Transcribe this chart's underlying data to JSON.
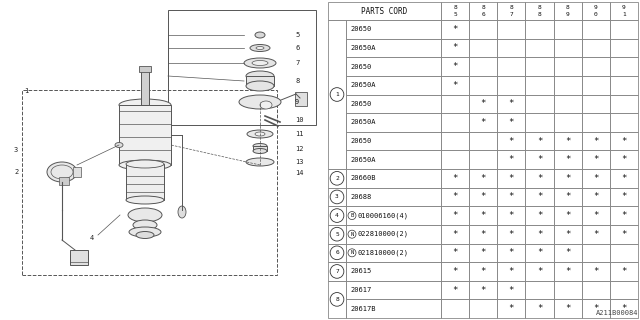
{
  "title": "A211B00084",
  "header_label": "PARTS CORD",
  "columns": [
    "85",
    "86",
    "87",
    "88",
    "89",
    "90",
    "91"
  ],
  "rows": [
    {
      "ref": "1",
      "part": "20650",
      "marks": [
        1,
        0,
        0,
        0,
        0,
        0,
        0
      ]
    },
    {
      "ref": "1",
      "part": "20650A",
      "marks": [
        1,
        0,
        0,
        0,
        0,
        0,
        0
      ]
    },
    {
      "ref": "1",
      "part": "20650",
      "marks": [
        1,
        0,
        0,
        0,
        0,
        0,
        0
      ]
    },
    {
      "ref": "1",
      "part": "20650A",
      "marks": [
        1,
        0,
        0,
        0,
        0,
        0,
        0
      ]
    },
    {
      "ref": "1",
      "part": "20650",
      "marks": [
        0,
        1,
        1,
        0,
        0,
        0,
        0
      ]
    },
    {
      "ref": "1",
      "part": "20650A",
      "marks": [
        0,
        1,
        1,
        0,
        0,
        0,
        0
      ]
    },
    {
      "ref": "1",
      "part": "20650",
      "marks": [
        0,
        0,
        1,
        1,
        1,
        1,
        1
      ]
    },
    {
      "ref": "1",
      "part": "20650A",
      "marks": [
        0,
        0,
        1,
        1,
        1,
        1,
        1
      ]
    },
    {
      "ref": "2",
      "part": "20660B",
      "marks": [
        1,
        1,
        1,
        1,
        1,
        1,
        1
      ]
    },
    {
      "ref": "3",
      "part": "20688",
      "marks": [
        1,
        1,
        1,
        1,
        1,
        1,
        1
      ]
    },
    {
      "ref": "4",
      "part": "B010006160(4)",
      "marks": [
        1,
        1,
        1,
        1,
        1,
        1,
        1
      ]
    },
    {
      "ref": "5",
      "part": "N022810000(2)",
      "marks": [
        1,
        1,
        1,
        1,
        1,
        1,
        1
      ]
    },
    {
      "ref": "6",
      "part": "N021810000(2)",
      "marks": [
        1,
        1,
        1,
        1,
        1,
        0,
        0
      ]
    },
    {
      "ref": "7",
      "part": "20615",
      "marks": [
        1,
        1,
        1,
        1,
        1,
        1,
        1
      ]
    },
    {
      "ref": "8",
      "part": "20617",
      "marks": [
        1,
        1,
        1,
        0,
        0,
        0,
        0
      ]
    },
    {
      "ref": "8",
      "part": "20617B",
      "marks": [
        0,
        0,
        1,
        1,
        1,
        1,
        1
      ]
    }
  ],
  "ref_spans": {
    "1": 8,
    "2": 1,
    "3": 1,
    "4": 1,
    "5": 1,
    "6": 1,
    "7": 1,
    "8": 2
  },
  "lc": "#555555",
  "bg_color": "#ffffff"
}
